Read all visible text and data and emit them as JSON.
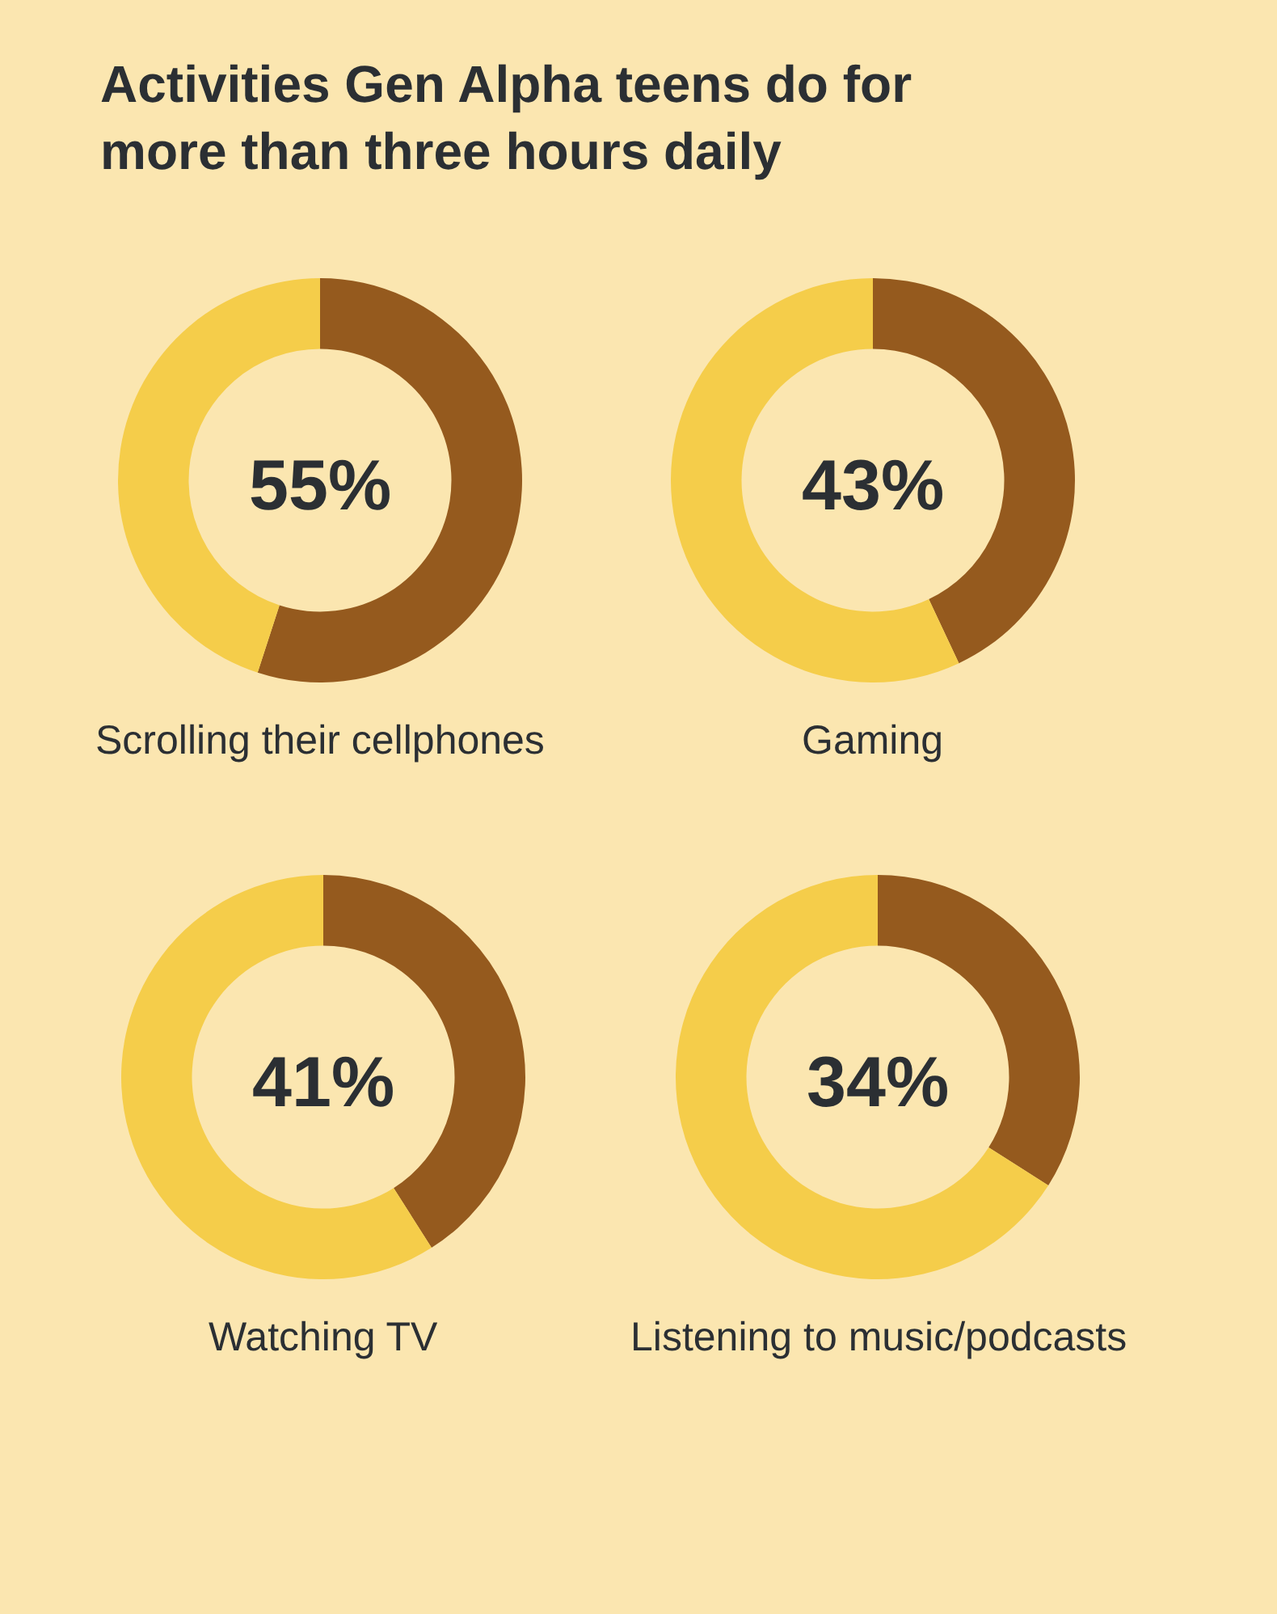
{
  "chart_data": [
    {
      "type": "donut",
      "title": "Activities Gen Alpha teens do for more than three hours daily",
      "categories": [
        null,
        null
      ],
      "values": [
        55,
        45
      ],
      "colors": [
        "#955a1e",
        "#f5cd4a"
      ],
      "annotations": [
        "55%"
      ],
      "xlabel": "Scrolling their cellphones"
    },
    {
      "type": "donut",
      "categories": [
        null,
        null
      ],
      "values": [
        43,
        57
      ],
      "colors": [
        "#955a1e",
        "#f5cd4a"
      ],
      "annotations": [
        "43%"
      ],
      "xlabel": "Gaming"
    },
    {
      "type": "donut",
      "categories": [
        null,
        null
      ],
      "values": [
        41,
        59
      ],
      "colors": [
        "#955a1e",
        "#f5cd4a"
      ],
      "annotations": [
        "41%"
      ],
      "xlabel": "Watching TV"
    },
    {
      "type": "donut",
      "categories": [
        null,
        null
      ],
      "values": [
        34,
        66
      ],
      "colors": [
        "#955a1e",
        "#f5cd4a"
      ],
      "annotations": [
        "34%"
      ],
      "xlabel": "Listening to music/podcasts"
    }
  ]
}
